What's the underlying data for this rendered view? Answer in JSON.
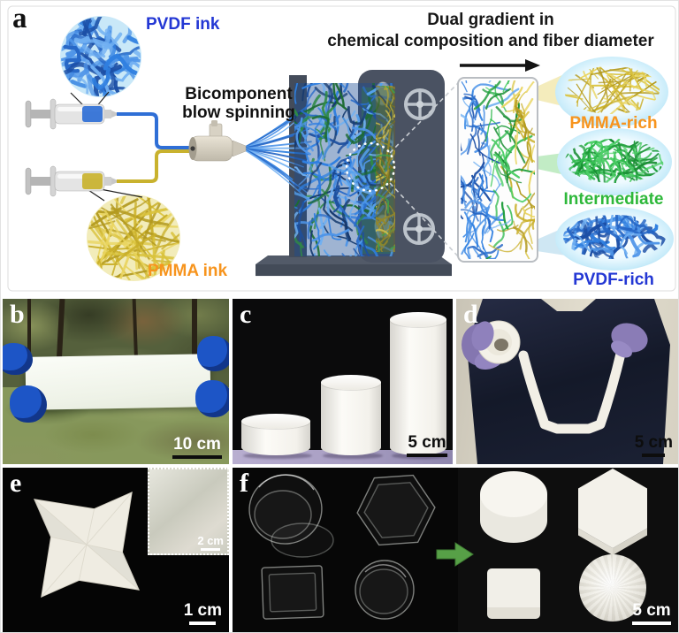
{
  "panel_a": {
    "label": "a",
    "title_line1": "Dual gradient in",
    "title_line2": "chemical composition and fiber diameter",
    "pvdf_ink_label": "PVDF ink",
    "pmma_ink_label": "PMMA ink",
    "process_line1": "Bicomponent",
    "process_line2": "blow spinning",
    "layers": [
      {
        "label": "PMMA-rich"
      },
      {
        "label": "Intermediate"
      },
      {
        "label": "PVDF-rich"
      }
    ],
    "colors": {
      "pvdf_text": "#2337d4",
      "pmma_text": "#f7941d",
      "intermediate_text": "#2eb83a",
      "pvdf_fiber": "#2f7fe0",
      "pmma_fiber": "#d9c23c",
      "intermediate_fiber": "#2db84b"
    }
  },
  "panel_b": {
    "label": "b",
    "scale_text": "10 cm"
  },
  "panel_c": {
    "label": "c",
    "scale_text": "5 cm"
  },
  "panel_d": {
    "label": "d",
    "scale_text": "5 cm"
  },
  "panel_e": {
    "label": "e",
    "scale_text": "1 cm",
    "inset_scale_text": "2 cm"
  },
  "panel_f": {
    "label": "f",
    "scale_text": "5 cm"
  }
}
